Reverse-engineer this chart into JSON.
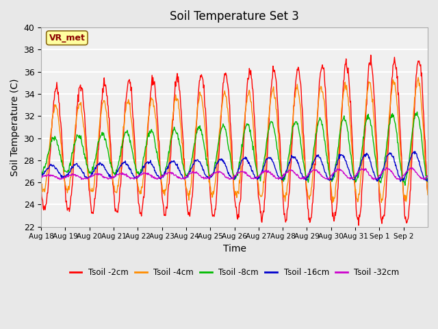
{
  "title": "Soil Temperature Set 3",
  "xlabel": "Time",
  "ylabel": "Soil Temperature (C)",
  "ylim": [
    22,
    40
  ],
  "yticks": [
    22,
    24,
    26,
    28,
    30,
    32,
    34,
    36,
    38,
    40
  ],
  "num_days": 16,
  "xtick_labels": [
    "Aug 18",
    "Aug 19",
    "Aug 20",
    "Aug 21",
    "Aug 22",
    "Aug 23",
    "Aug 24",
    "Aug 25",
    "Aug 26",
    "Aug 27",
    "Aug 28",
    "Aug 29",
    "Aug 30",
    "Aug 31",
    "Sep 1",
    "Sep 2"
  ],
  "annotation_text": "VR_met",
  "annotation_color": "#8B0000",
  "annotation_bg": "#FFFFA0",
  "annotation_edge": "#8B6914",
  "line_colors": [
    "#FF0000",
    "#FF8C00",
    "#00BB00",
    "#0000CC",
    "#CC00CC"
  ],
  "line_labels": [
    "Tsoil -2cm",
    "Tsoil -4cm",
    "Tsoil -8cm",
    "Tsoil -16cm",
    "Tsoil -32cm"
  ],
  "bg_color": "#E8E8E8",
  "plot_bg": "#F0F0F0",
  "grid_color": "#FFFFFF",
  "periods_per_day": 48
}
